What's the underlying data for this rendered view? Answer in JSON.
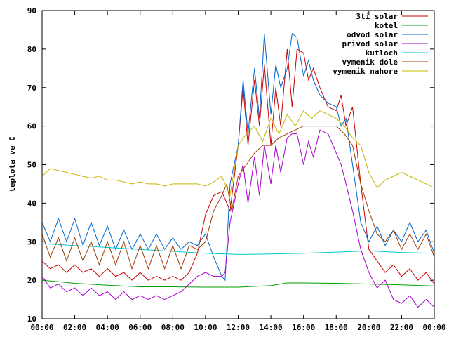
{
  "chart_data": {
    "type": "line",
    "ylabel": "teplota ve C",
    "xlabel": "",
    "ylim": [
      10,
      90
    ],
    "yticks": [
      10,
      20,
      30,
      40,
      50,
      60,
      70,
      80,
      90
    ],
    "xlim": [
      0,
      24
    ],
    "xtick_labels": [
      "00:00",
      "02:00",
      "04:00",
      "06:00",
      "08:00",
      "10:00",
      "12:00",
      "14:00",
      "16:00",
      "18:00",
      "20:00",
      "22:00",
      "00:00"
    ],
    "grid": false,
    "legend_position": "top-right",
    "series": [
      {
        "name": "3ti solar",
        "color": "#cc0000",
        "x": [
          0,
          0.5,
          1,
          1.5,
          2,
          2.5,
          3,
          3.5,
          4,
          4.5,
          5,
          5.5,
          6,
          6.5,
          7,
          7.5,
          8,
          8.5,
          9,
          9.5,
          10,
          10.5,
          11,
          11.5,
          12,
          12.3,
          12.6,
          13,
          13.3,
          13.6,
          14,
          14.3,
          14.6,
          15,
          15.3,
          15.6,
          16,
          16.3,
          16.6,
          17,
          17.5,
          18,
          18.3,
          18.6,
          19,
          19.5,
          20,
          20.5,
          21,
          21.5,
          22,
          22.5,
          23,
          23.5,
          24
        ],
        "y": [
          25,
          23,
          24,
          22,
          24,
          22,
          23,
          21,
          23,
          21,
          22,
          20,
          22,
          20,
          21,
          20,
          21,
          20,
          22,
          27,
          37,
          42,
          43,
          38,
          55,
          70,
          55,
          72,
          60,
          76,
          55,
          70,
          60,
          80,
          65,
          80,
          79,
          72,
          75,
          70,
          65,
          64,
          68,
          60,
          65,
          45,
          28,
          25,
          22,
          24,
          21,
          23,
          20,
          22,
          19
        ]
      },
      {
        "name": "kotel",
        "color": "#00a000",
        "x": [
          0,
          2,
          4,
          6,
          8,
          10,
          12,
          14,
          15,
          16,
          18,
          20,
          22,
          24
        ],
        "y": [
          20,
          19.2,
          18.7,
          18.3,
          18.3,
          18.2,
          18.2,
          18.6,
          19.3,
          19.3,
          19.2,
          19,
          18.8,
          18.5
        ]
      },
      {
        "name": "odvod solar",
        "color": "#0066cc",
        "x": [
          0,
          0.5,
          1,
          1.5,
          2,
          2.5,
          3,
          3.5,
          4,
          4.5,
          5,
          5.5,
          6,
          6.5,
          7,
          7.5,
          8,
          8.5,
          9,
          9.5,
          10,
          10.5,
          11,
          11.2,
          11.5,
          12,
          12.3,
          12.6,
          13,
          13.3,
          13.6,
          14,
          14.3,
          14.6,
          15,
          15.3,
          15.6,
          16,
          16.3,
          16.6,
          17,
          17.5,
          18,
          18.3,
          18.6,
          19,
          19.5,
          20,
          20.5,
          21,
          21.5,
          22,
          22.5,
          23,
          23.5,
          24
        ],
        "y": [
          35,
          30,
          36,
          30,
          36,
          29,
          35,
          29,
          34,
          28,
          33,
          28,
          32,
          28,
          32,
          28,
          31,
          28,
          30,
          29,
          32,
          26,
          21,
          20,
          45,
          55,
          72,
          58,
          75,
          62,
          84,
          63,
          76,
          70,
          75,
          84,
          83,
          73,
          77,
          72,
          68,
          66,
          65,
          60,
          62,
          50,
          35,
          30,
          34,
          29,
          33,
          30,
          35,
          30,
          33,
          27
        ]
      },
      {
        "name": "privod solar",
        "color": "#aa00cc",
        "x": [
          0,
          0.5,
          1,
          1.5,
          2,
          2.5,
          3,
          3.5,
          4,
          4.5,
          5,
          5.5,
          6,
          6.5,
          7,
          7.5,
          8,
          8.5,
          9,
          9.5,
          10,
          10.5,
          11,
          11.2,
          11.5,
          12,
          12.3,
          12.6,
          13,
          13.3,
          13.6,
          14,
          14.3,
          14.6,
          15,
          15.3,
          15.6,
          16,
          16.3,
          16.6,
          17,
          17.5,
          18,
          18.3,
          18.6,
          19,
          19.5,
          20,
          20.5,
          21,
          21.5,
          22,
          22.5,
          23,
          23.5,
          24
        ],
        "y": [
          21,
          18,
          19,
          17,
          18,
          16,
          18,
          16,
          17,
          15,
          17,
          15,
          16,
          15,
          16,
          15,
          16,
          17,
          19,
          21,
          22,
          21,
          21,
          22,
          35,
          45,
          50,
          40,
          52,
          42,
          55,
          45,
          55,
          48,
          57,
          58,
          58,
          50,
          56,
          52,
          59,
          58,
          53,
          50,
          45,
          38,
          28,
          22,
          18,
          20,
          15,
          14,
          16,
          13,
          15,
          13
        ]
      },
      {
        "name": "kutloch",
        "color": "#00c8c8",
        "x": [
          0,
          2,
          4,
          6,
          8,
          10,
          12,
          14,
          16,
          18,
          20,
          22,
          24
        ],
        "y": [
          29.5,
          29,
          28.5,
          28,
          27.5,
          27,
          26.7,
          26.8,
          27,
          27.3,
          27.6,
          27.2,
          27
        ]
      },
      {
        "name": "vymenik dole",
        "color": "#a03c00",
        "x": [
          0,
          0.5,
          1,
          1.5,
          2,
          2.5,
          3,
          3.5,
          4,
          4.5,
          5,
          5.5,
          6,
          6.5,
          7,
          7.5,
          8,
          8.5,
          9,
          9.5,
          10,
          10.5,
          11,
          11.3,
          11.6,
          12,
          12.5,
          13,
          13.5,
          14,
          14.5,
          15,
          15.5,
          16,
          16.5,
          17,
          17.5,
          18,
          18.5,
          19,
          19.5,
          20,
          20.5,
          21,
          21.5,
          22,
          22.5,
          23,
          23.5,
          24
        ],
        "y": [
          32,
          26,
          31,
          25,
          31,
          25,
          30,
          24,
          30,
          24,
          30,
          23,
          29,
          23,
          29,
          23,
          29,
          23,
          29,
          28,
          30,
          38,
          42,
          45,
          38,
          47,
          50,
          53,
          55,
          55,
          57,
          58,
          59,
          60,
          60,
          60,
          60,
          60,
          58,
          55,
          45,
          38,
          32,
          30,
          33,
          28,
          32,
          28,
          32,
          26
        ]
      },
      {
        "name": "vymenik nahore",
        "color": "#c8b400",
        "x": [
          0,
          0.5,
          1,
          1.5,
          2,
          2.5,
          3,
          3.5,
          4,
          4.5,
          5,
          5.5,
          6,
          6.5,
          7,
          7.5,
          8,
          8.5,
          9,
          9.5,
          10,
          10.5,
          11,
          11.5,
          12,
          12.5,
          13,
          13.5,
          14,
          14.5,
          15,
          15.5,
          16,
          16.5,
          17,
          17.5,
          18,
          18.5,
          19,
          19.5,
          20,
          20.5,
          21,
          21.5,
          22,
          22.5,
          23,
          23.5,
          24
        ],
        "y": [
          47,
          49,
          48.5,
          48,
          47.5,
          47,
          46.5,
          47,
          46,
          46,
          45.5,
          45,
          45.5,
          45,
          45,
          44.5,
          45,
          45,
          45,
          45,
          44.5,
          45.5,
          47,
          42,
          55,
          58,
          60,
          56,
          62,
          58,
          63,
          60,
          64,
          62,
          64,
          63,
          62,
          60,
          57,
          55,
          48,
          44,
          46,
          47,
          48,
          47,
          46,
          45,
          44
        ]
      }
    ]
  }
}
